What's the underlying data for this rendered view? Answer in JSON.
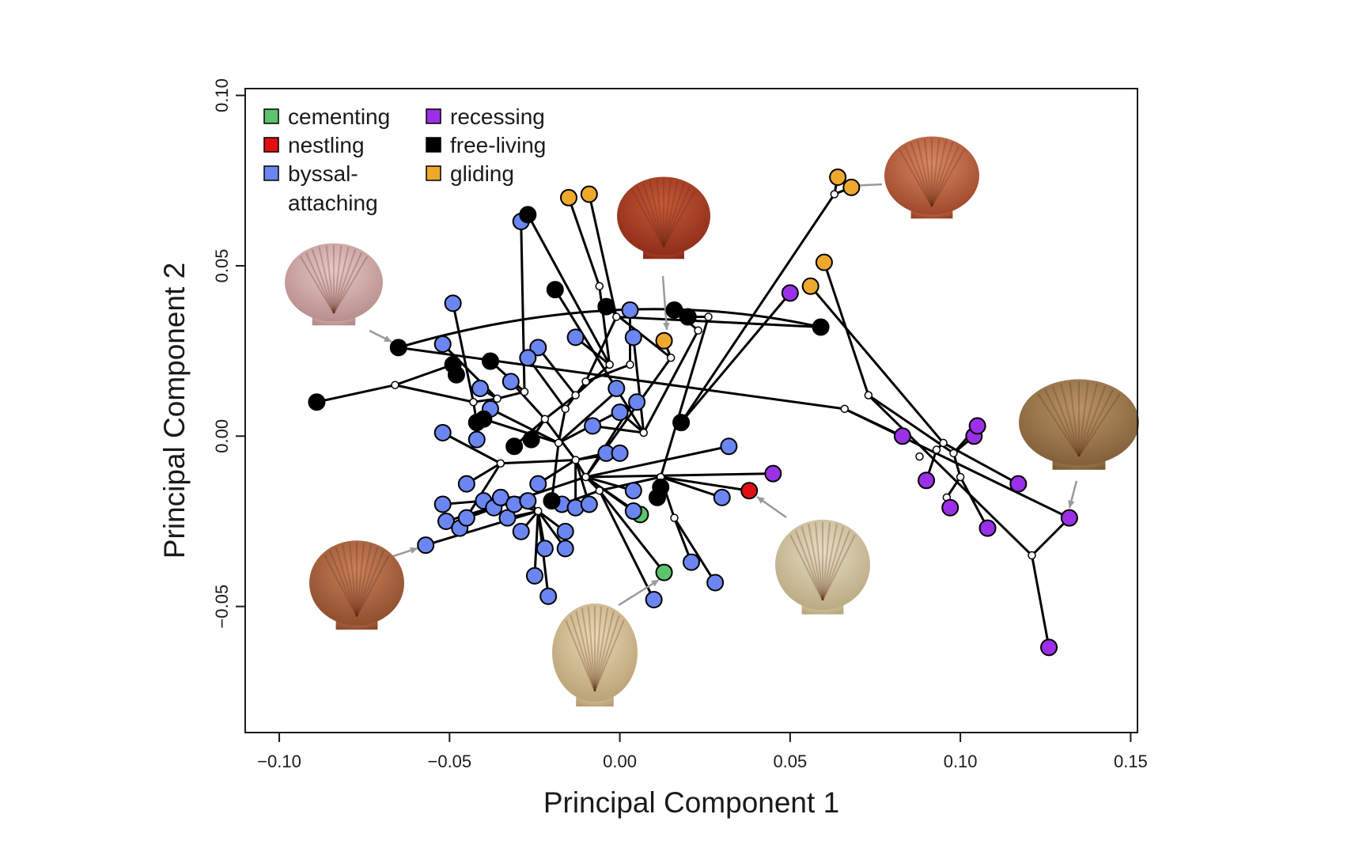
{
  "chart_data": {
    "type": "scatter",
    "title": "",
    "xlabel": "Principal Component 1",
    "ylabel": "Principal Component 2",
    "xlim": [
      -0.11,
      0.152
    ],
    "ylim": [
      -0.087,
      0.102
    ],
    "xticks": [
      -0.1,
      -0.05,
      0.0,
      0.05,
      0.1,
      0.15
    ],
    "xtick_labels": [
      "−0.10",
      "−0.05",
      "0.00",
      "0.05",
      "0.10",
      "0.15"
    ],
    "yticks": [
      -0.05,
      0.0,
      0.05,
      0.1
    ],
    "ytick_labels": [
      "−0.05",
      "0.00",
      "0.05",
      "0.10"
    ],
    "grid": false,
    "legend_position": "top-left",
    "legend": [
      {
        "name": "cementing",
        "color": "#5cc46a"
      },
      {
        "name": "nestling",
        "color": "#e01010"
      },
      {
        "name": "byssal-\nattaching",
        "color": "#6b86f0"
      },
      {
        "name": "recessing",
        "color": "#9b30e6"
      },
      {
        "name": "free-living",
        "color": "#000000"
      },
      {
        "name": "gliding",
        "color": "#eea82c"
      }
    ],
    "series": [
      {
        "name": "cementing",
        "color": "#5cc46a",
        "points": [
          [
            0.006,
            -0.023
          ],
          [
            0.013,
            -0.04
          ]
        ]
      },
      {
        "name": "nestling",
        "color": "#e01010",
        "points": [
          [
            0.038,
            -0.016
          ]
        ]
      },
      {
        "name": "byssal-\nattaching",
        "color": "#6b86f0",
        "points": [
          [
            -0.029,
            0.063
          ],
          [
            -0.049,
            0.039
          ],
          [
            -0.052,
            0.027
          ],
          [
            -0.024,
            0.026
          ],
          [
            -0.027,
            0.023
          ],
          [
            -0.013,
            0.029
          ],
          [
            0.003,
            0.037
          ],
          [
            0.004,
            0.029
          ],
          [
            -0.032,
            0.016
          ],
          [
            -0.041,
            0.014
          ],
          [
            -0.038,
            0.008
          ],
          [
            -0.052,
            0.001
          ],
          [
            -0.042,
            -0.001
          ],
          [
            -0.001,
            0.014
          ],
          [
            0.005,
            0.01
          ],
          [
            0.0,
            0.007
          ],
          [
            -0.008,
            0.003
          ],
          [
            0.032,
            -0.003
          ],
          [
            -0.004,
            -0.005
          ],
          [
            0.0,
            -0.005
          ],
          [
            -0.045,
            -0.014
          ],
          [
            -0.052,
            -0.02
          ],
          [
            -0.051,
            -0.025
          ],
          [
            -0.047,
            -0.027
          ],
          [
            -0.045,
            -0.024
          ],
          [
            -0.04,
            -0.019
          ],
          [
            -0.037,
            -0.021
          ],
          [
            -0.035,
            -0.018
          ],
          [
            -0.033,
            -0.024
          ],
          [
            -0.031,
            -0.02
          ],
          [
            -0.029,
            -0.028
          ],
          [
            -0.027,
            -0.019
          ],
          [
            -0.024,
            -0.014
          ],
          [
            -0.017,
            -0.02
          ],
          [
            -0.016,
            -0.028
          ],
          [
            -0.013,
            -0.021
          ],
          [
            -0.009,
            -0.02
          ],
          [
            0.004,
            -0.016
          ],
          [
            0.004,
            -0.022
          ],
          [
            -0.022,
            -0.033
          ],
          [
            -0.016,
            -0.033
          ],
          [
            -0.057,
            -0.032
          ],
          [
            -0.025,
            -0.041
          ],
          [
            -0.021,
            -0.047
          ],
          [
            0.01,
            -0.048
          ],
          [
            0.021,
            -0.037
          ],
          [
            0.028,
            -0.043
          ],
          [
            0.03,
            -0.018
          ]
        ]
      },
      {
        "name": "recessing",
        "color": "#9b30e6",
        "points": [
          [
            0.05,
            0.042
          ],
          [
            0.045,
            -0.011
          ],
          [
            0.083,
            0.0
          ],
          [
            0.09,
            -0.013
          ],
          [
            0.097,
            -0.021
          ],
          [
            0.104,
            0.0
          ],
          [
            0.105,
            0.003
          ],
          [
            0.108,
            -0.027
          ],
          [
            0.117,
            -0.014
          ],
          [
            0.132,
            -0.024
          ],
          [
            0.126,
            -0.062
          ]
        ]
      },
      {
        "name": "free-living",
        "color": "#000000",
        "points": [
          [
            -0.027,
            0.065
          ],
          [
            -0.019,
            0.043
          ],
          [
            -0.065,
            0.026
          ],
          [
            -0.089,
            0.01
          ],
          [
            -0.049,
            0.021
          ],
          [
            -0.048,
            0.018
          ],
          [
            -0.038,
            0.022
          ],
          [
            -0.042,
            0.004
          ],
          [
            -0.04,
            0.005
          ],
          [
            -0.031,
            -0.003
          ],
          [
            -0.026,
            -0.001
          ],
          [
            -0.02,
            -0.019
          ],
          [
            -0.004,
            0.038
          ],
          [
            0.016,
            0.037
          ],
          [
            0.02,
            0.035
          ],
          [
            0.059,
            0.032
          ],
          [
            0.018,
            0.004
          ],
          [
            0.012,
            -0.015
          ],
          [
            0.011,
            -0.018
          ]
        ]
      },
      {
        "name": "gliding",
        "color": "#eea82c",
        "points": [
          [
            -0.015,
            0.07
          ],
          [
            -0.009,
            0.071
          ],
          [
            0.064,
            0.076
          ],
          [
            0.068,
            0.073
          ],
          [
            0.06,
            0.051
          ],
          [
            0.056,
            0.044
          ],
          [
            0.013,
            0.028
          ]
        ]
      }
    ]
  }
}
